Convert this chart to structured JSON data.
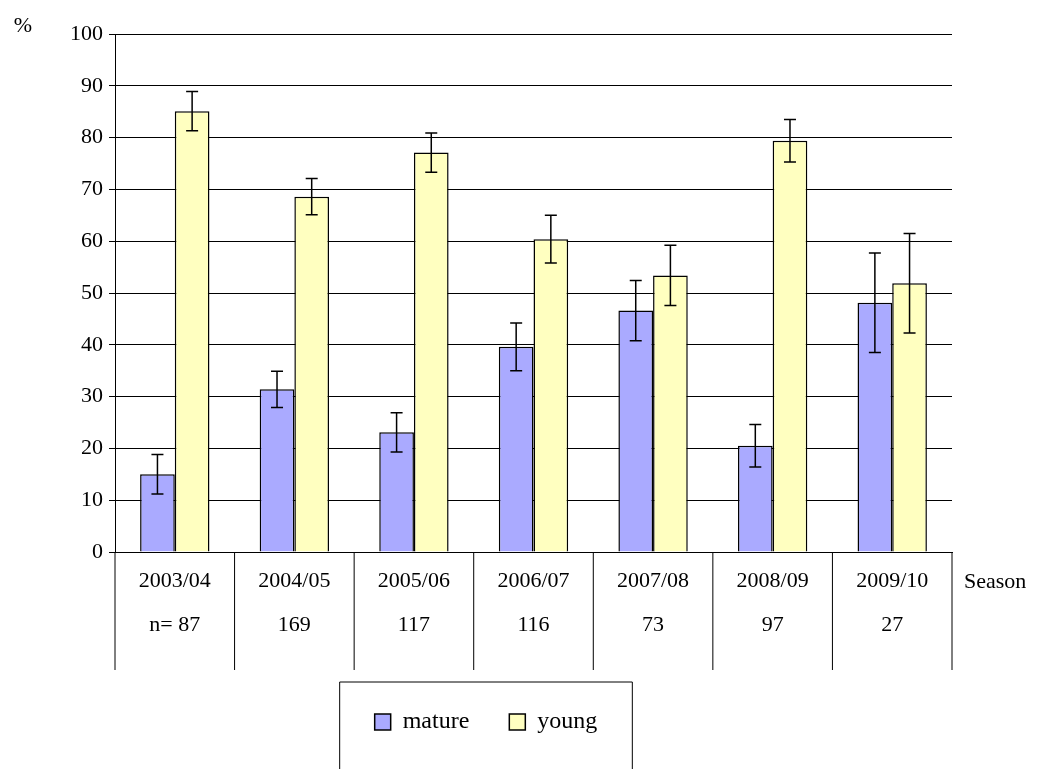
{
  "chart_data": {
    "type": "bar",
    "xlabel": "Season",
    "ylabel": "%",
    "categories": [
      "2003/04",
      "2004/05",
      "2005/06",
      "2006/07",
      "2007/08",
      "2008/09",
      "2009/10"
    ],
    "series": [
      {
        "name": "mature",
        "color": "#aaaaff",
        "values": [
          15.0,
          31.4,
          23.1,
          39.6,
          46.6,
          20.5,
          48.1
        ],
        "errors": [
          3.8,
          3.5,
          3.8,
          4.6,
          5.8,
          4.1,
          9.6
        ]
      },
      {
        "name": "young",
        "color": "#ffffc0",
        "values": [
          85.1,
          68.6,
          77.1,
          60.4,
          53.4,
          79.4,
          51.9
        ],
        "errors": [
          3.8,
          3.5,
          3.8,
          4.6,
          5.8,
          4.1,
          9.6
        ]
      }
    ],
    "annotations": [
      "n= 87",
      "169",
      "117",
      "116",
      "73",
      "97",
      "27"
    ],
    "ylim": [
      0,
      100
    ],
    "yticks": [
      0,
      10,
      20,
      30,
      40,
      50,
      60,
      70,
      80,
      90,
      100
    ],
    "grid": "y",
    "legend": "bottom"
  }
}
